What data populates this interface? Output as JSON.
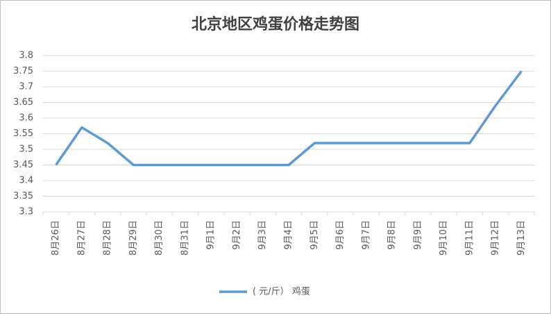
{
  "chart_data": {
    "type": "line",
    "title": "北京地区鸡蛋价格走势图",
    "categories": [
      "8月26日",
      "8月27日",
      "8月28日",
      "8月29日",
      "8月30日",
      "8月31日",
      "9月1日",
      "9月2日",
      "9月3日",
      "9月4日",
      "9月5日",
      "9月6日",
      "9月7日",
      "9月8日",
      "9月9日",
      "9月10日",
      "9月11日",
      "9月12日",
      "9月13日"
    ],
    "series": [
      {
        "name": "( 元/斤） 鸡蛋",
        "color": "#5b9bd5",
        "values": [
          3.45,
          3.57,
          3.52,
          3.45,
          3.45,
          3.45,
          3.45,
          3.45,
          3.45,
          3.45,
          3.52,
          3.52,
          3.52,
          3.52,
          3.52,
          3.52,
          3.52,
          3.64,
          3.75
        ]
      }
    ],
    "ylim": [
      3.3,
      3.8
    ],
    "yticks": [
      3.3,
      3.35,
      3.4,
      3.45,
      3.5,
      3.55,
      3.6,
      3.65,
      3.7,
      3.75,
      3.8
    ],
    "grid": true,
    "legend": "bottom"
  }
}
